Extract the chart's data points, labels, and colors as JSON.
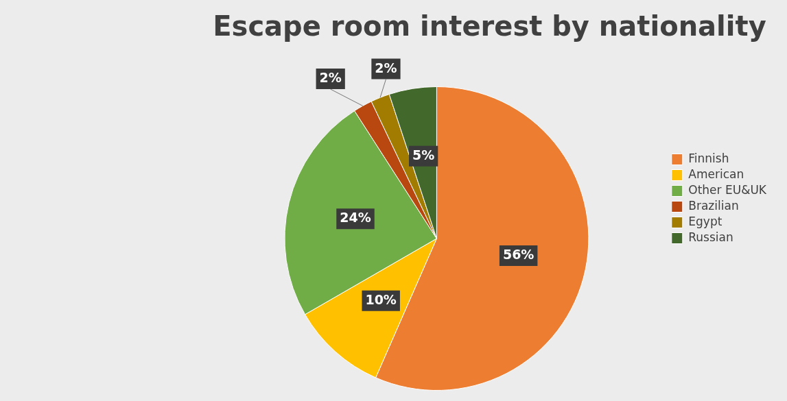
{
  "chart_data": {
    "type": "pie",
    "title": "Escape room interest by nationality",
    "categories": [
      "Finnish",
      "American",
      "Other EU&UK",
      "Brazilian",
      "Egypt",
      "Russian"
    ],
    "values": [
      56,
      10,
      24,
      2,
      2,
      5
    ],
    "colors": [
      "#ed7d31",
      "#ffc000",
      "#70ad47",
      "#b8480f",
      "#a27c00",
      "#43682b"
    ],
    "value_labels": [
      "56%",
      "10%",
      "24%",
      "2%",
      "2%",
      "5%"
    ],
    "legend": "right"
  }
}
